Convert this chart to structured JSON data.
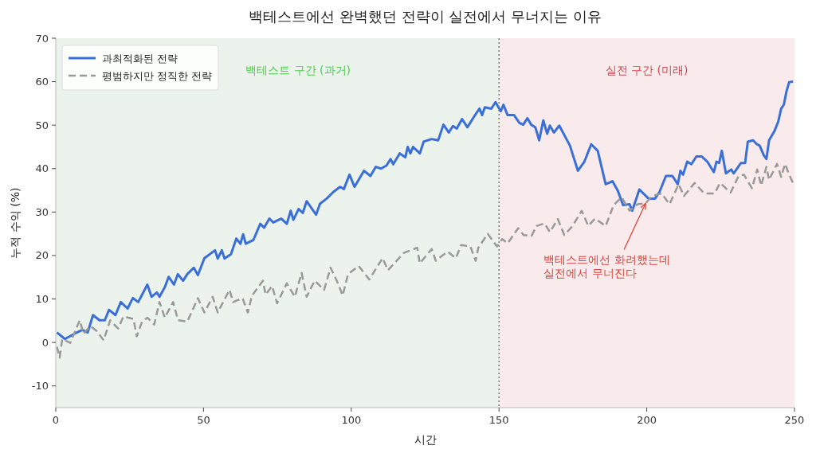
{
  "chart_data": {
    "type": "line",
    "title": "백테스트에선 완벽했던 전략이 실전에서 무너지는 이유",
    "xlabel": "시간",
    "ylabel": "누적 수익 (%)",
    "xlim": [
      0,
      250
    ],
    "xticks": [
      0,
      50,
      100,
      150,
      200,
      250
    ],
    "ylim": [
      -15,
      70
    ],
    "yticks": [
      -10,
      0,
      10,
      20,
      30,
      40,
      50,
      60,
      70
    ],
    "grid": false,
    "legend": "top left",
    "series": [
      {
        "name": "과최적화된 전략",
        "color": "#3a6fd8",
        "line_style": "solid",
        "x": [
          0.4,
          3.1,
          6.3,
          9.0,
          10.8,
          12.6,
          14.8,
          16.6,
          18.0,
          20.2,
          22.0,
          24.3,
          26.1,
          27.9,
          31.0,
          32.4,
          34.2,
          35.1,
          36.9,
          38.2,
          40.0,
          41.3,
          43.1,
          44.5,
          46.7,
          48.1,
          50.3,
          53.9,
          54.8,
          56.2,
          57.1,
          59.3,
          61.1,
          62.5,
          63.4,
          64.3,
          66.9,
          69.2,
          70.5,
          72.3,
          73.6,
          76.3,
          78.2,
          79.5,
          80.4,
          82.2,
          83.6,
          84.9,
          88.1,
          89.4,
          91.7,
          93.9,
          96.2,
          97.5,
          99.4,
          101.1,
          104.3,
          106.5,
          108.3,
          110.1,
          111.9,
          113.3,
          114.2,
          116.4,
          118.3,
          119.1,
          120.0,
          120.9,
          123.2,
          124.5,
          127.2,
          129.4,
          131.2,
          133.0,
          134.4,
          135.7,
          137.5,
          139.3,
          141.6,
          143.4,
          144.3,
          145.2,
          147.4,
          148.8,
          150.6,
          151.5,
          152.9,
          155.1,
          156.9,
          158.2,
          159.6,
          160.9,
          162.3,
          163.6,
          165.0,
          166.3,
          167.2,
          168.6,
          170.4,
          174.0,
          176.7,
          178.9,
          181.2,
          183.4,
          186.1,
          188.4,
          190.2,
          192.0,
          194.2,
          195.1,
          197.5,
          200.6,
          202.8,
          204.3,
          206.5,
          208.7,
          210.5,
          211.4,
          212.3,
          213.7,
          215.1,
          216.8,
          218.6,
          220.5,
          222.7,
          223.6,
          224.5,
          225.4,
          226.8,
          228.6,
          229.4,
          231.9,
          233.3,
          234.2,
          236.0,
          237.3,
          238.2,
          239.6,
          240.5,
          241.4,
          243.2,
          244.5,
          245.5,
          246.4,
          247.3,
          248.2,
          249.5
        ],
        "values": [
          2.3,
          0.8,
          2.0,
          2.9,
          2.3,
          6.3,
          5.1,
          5.1,
          7.5,
          6.3,
          9.3,
          7.8,
          10.2,
          9.3,
          13.3,
          10.5,
          11.5,
          10.5,
          12.7,
          15.1,
          13.3,
          15.7,
          14.2,
          15.7,
          17.2,
          15.5,
          19.4,
          21.2,
          19.3,
          21.2,
          19.3,
          20.3,
          23.9,
          22.7,
          24.9,
          22.7,
          23.6,
          27.3,
          26.4,
          28.5,
          27.6,
          28.5,
          27.3,
          30.3,
          28.2,
          30.7,
          29.8,
          32.5,
          29.4,
          31.9,
          33.1,
          34.6,
          35.8,
          35.3,
          38.6,
          35.8,
          39.5,
          38.3,
          40.4,
          40.0,
          40.7,
          42.2,
          41.0,
          43.5,
          42.6,
          45.0,
          43.5,
          45.0,
          43.5,
          46.2,
          46.8,
          46.5,
          50.1,
          48.3,
          49.8,
          49.2,
          51.4,
          49.5,
          52.0,
          53.8,
          52.3,
          54.1,
          53.8,
          55.3,
          53.2,
          54.7,
          52.3,
          52.3,
          50.5,
          50.1,
          51.6,
          50.1,
          49.5,
          46.5,
          51.1,
          48.0,
          49.9,
          48.3,
          49.9,
          45.3,
          39.5,
          41.6,
          45.6,
          44.1,
          36.4,
          37.1,
          34.9,
          31.6,
          31.8,
          30.3,
          35.2,
          33.1,
          33.1,
          34.6,
          38.3,
          38.3,
          36.4,
          39.5,
          38.6,
          41.6,
          41.0,
          42.8,
          42.8,
          41.6,
          39.2,
          41.6,
          41.3,
          44.1,
          38.9,
          39.8,
          38.9,
          41.3,
          41.3,
          46.2,
          46.5,
          45.6,
          45.3,
          43.1,
          42.2,
          46.5,
          48.6,
          50.8,
          53.8,
          54.7,
          57.8,
          59.9,
          60.0
        ]
      },
      {
        "name": "평범하지만 정직한 전략",
        "color": "#999999",
        "line_style": "dashed",
        "x": [
          0.4,
          1.3,
          2.2,
          4.9,
          8.1,
          9.4,
          11.7,
          13.9,
          16.2,
          18.4,
          21.1,
          22.9,
          26.3,
          27.4,
          29.2,
          31.0,
          33.3,
          35.1,
          36.9,
          39.7,
          41.4,
          44.5,
          45.9,
          48.1,
          50.3,
          53.1,
          54.8,
          58.8,
          60.0,
          63.2,
          65.0,
          66.4,
          70.1,
          71.0,
          73.2,
          74.9,
          78.2,
          80.9,
          83.2,
          84.9,
          87.6,
          90.8,
          93.0,
          95.3,
          97.1,
          98.9,
          102.5,
          106.1,
          110.6,
          112.4,
          117.8,
          122.3,
          123.2,
          127.2,
          128.6,
          132.6,
          135.4,
          137.2,
          140.3,
          142.1,
          143.0,
          146.2,
          149.3,
          151.1,
          152.9,
          156.5,
          158.3,
          161.0,
          162.7,
          165.4,
          167.2,
          169.9,
          172.1,
          174.9,
          178.0,
          180.2,
          182.5,
          186.1,
          188.8,
          191.5,
          194.2,
          196.9,
          199.6,
          201.8,
          205.0,
          207.7,
          210.8,
          212.6,
          216.2,
          219.4,
          223.0,
          224.8,
          228.4,
          231.1,
          232.9,
          235.6,
          237.4,
          238.7,
          240.5,
          241.4,
          244.1,
          245.5,
          246.8,
          248.2,
          249.5
        ],
        "values": [
          -1.0,
          -3.5,
          0.8,
          -0.1,
          5.1,
          2.0,
          3.8,
          2.6,
          0.5,
          5.1,
          3.2,
          6.0,
          5.4,
          1.4,
          4.8,
          5.7,
          4.1,
          9.3,
          5.7,
          9.3,
          5.1,
          4.8,
          6.9,
          10.2,
          6.9,
          10.5,
          6.9,
          12.1,
          9.3,
          10.2,
          6.9,
          10.8,
          14.2,
          11.0,
          13.0,
          9.0,
          13.6,
          10.5,
          16.0,
          10.5,
          14.2,
          12.1,
          17.2,
          13.9,
          10.8,
          15.7,
          17.6,
          14.5,
          19.4,
          16.6,
          20.6,
          21.8,
          18.2,
          21.5,
          18.8,
          20.9,
          19.4,
          22.4,
          22.1,
          18.8,
          21.8,
          25.0,
          22.1,
          23.8,
          22.8,
          26.3,
          24.7,
          24.5,
          26.8,
          27.4,
          25.4,
          28.4,
          24.7,
          26.8,
          30.3,
          26.8,
          28.5,
          26.8,
          31.6,
          33.4,
          30.3,
          31.8,
          32.0,
          33.7,
          34.3,
          31.8,
          36.4,
          33.7,
          36.7,
          34.3,
          34.3,
          36.7,
          34.5,
          38.3,
          38.6,
          35.5,
          39.8,
          36.1,
          40.4,
          37.4,
          41.1,
          38.1,
          41.1,
          38.6,
          36.7
        ]
      }
    ],
    "bands": [
      {
        "axis": "x",
        "from": 0,
        "to": 150,
        "label": "백테스트 구간 (과거)",
        "color": "#ecf3ec"
      },
      {
        "axis": "x",
        "from": 150,
        "to": 250,
        "label": "실전 구간 (미래)",
        "color": "#f9ebec"
      }
    ],
    "ref_lines": [
      {
        "axis": "x",
        "value": 150,
        "color": "#777777",
        "line_style": "dotted"
      }
    ],
    "annotations": [
      {
        "text": "백테스트에선 화려했는데\n실전에서 무너진다",
        "x": 199.6,
        "y": 32.0
      }
    ]
  }
}
